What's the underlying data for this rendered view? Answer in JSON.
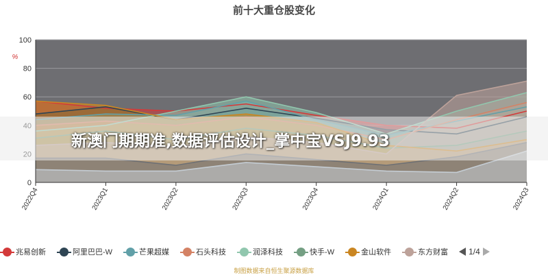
{
  "chart_data": {
    "type": "area",
    "title": "前十大重仓股变化",
    "categories": [
      "2022Q4",
      "2023Q1",
      "2023Q2",
      "2023Q3",
      "2023Q4",
      "2024Q1",
      "2024Q2",
      "2024Q3"
    ],
    "ylim": [
      0,
      100
    ],
    "yticks": [
      0,
      20,
      40,
      60,
      80,
      100
    ],
    "y_unit": "%",
    "grid": true,
    "legend_position": "bottom",
    "series": [
      {
        "name": "兆易创新",
        "color": "#d33a3a",
        "values": [
          57,
          52,
          50,
          55,
          47,
          40,
          38,
          50
        ]
      },
      {
        "name": "阿里巴巴-W",
        "color": "#2f4554",
        "values": [
          48,
          53,
          44,
          52,
          45,
          37,
          34,
          46
        ]
      },
      {
        "name": "芒果超媒",
        "color": "#61a0a8",
        "values": [
          44,
          48,
          47,
          57,
          44,
          33,
          43,
          53
        ]
      },
      {
        "name": "石头科技",
        "color": "#d48265",
        "values": [
          40,
          43,
          40,
          46,
          40,
          30,
          44,
          56
        ]
      },
      {
        "name": "润泽科技",
        "color": "#91c7ae",
        "values": [
          36,
          40,
          50,
          60,
          49,
          34,
          50,
          63
        ]
      },
      {
        "name": "快手-W",
        "color": "#749f83",
        "values": [
          31,
          36,
          30,
          38,
          33,
          24,
          26,
          36
        ]
      },
      {
        "name": "金山软件",
        "color": "#ca8622",
        "values": [
          57,
          54,
          44,
          48,
          42,
          26,
          22,
          30
        ]
      },
      {
        "name": "东方财富",
        "color": "#bda29a",
        "values": [
          26,
          28,
          25,
          32,
          28,
          20,
          61,
          71
        ]
      },
      {
        "name": "",
        "color": "#6e7074",
        "values": [
          17,
          17,
          12,
          20,
          16,
          12,
          18,
          28
        ]
      },
      {
        "name": "",
        "color": "#c4ccd3",
        "values": [
          9,
          8,
          8,
          14,
          11,
          8,
          7,
          22
        ]
      }
    ]
  },
  "legend": {
    "page": "1/4"
  },
  "banner": {
    "text": "新澳门期期准,数据评估设计_掌中宝VSJ9.93"
  },
  "footer": {
    "text": "制图数据来自恒生聚源数据库"
  }
}
